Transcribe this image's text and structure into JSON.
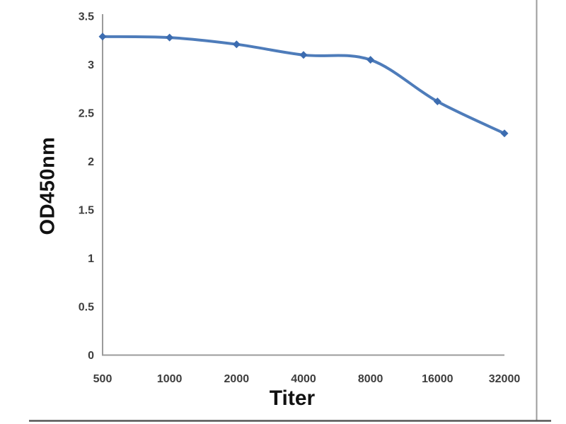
{
  "figure": {
    "background": "#ffffff",
    "frame_right_color": "#9b9b9b",
    "frame_bottom_color": "#555555"
  },
  "chart_data": {
    "type": "line",
    "title": "",
    "xlabel": "Titer",
    "ylabel": "OD450nm",
    "categories": [
      "500",
      "1000",
      "2000",
      "4000",
      "8000",
      "16000",
      "32000"
    ],
    "series": [
      {
        "name": "OD450nm",
        "values": [
          3.29,
          3.28,
          3.21,
          3.1,
          3.05,
          2.62,
          2.29
        ]
      }
    ],
    "ylim": [
      0,
      3.5
    ],
    "yticks": [
      0,
      0.5,
      1,
      1.5,
      2,
      2.5,
      3,
      3.5
    ],
    "ytick_labels": [
      "0",
      "0.5",
      "1",
      "1.5",
      "2",
      "2.5",
      "3",
      "3.5"
    ],
    "grid": false,
    "legend": false,
    "smooth": true,
    "marker": "diamond",
    "line_color": "#4e7cba",
    "marker_color": "#3c6cb0",
    "axis_color": "#9b9b9b",
    "tick_label_color": "#3d3d3d"
  }
}
